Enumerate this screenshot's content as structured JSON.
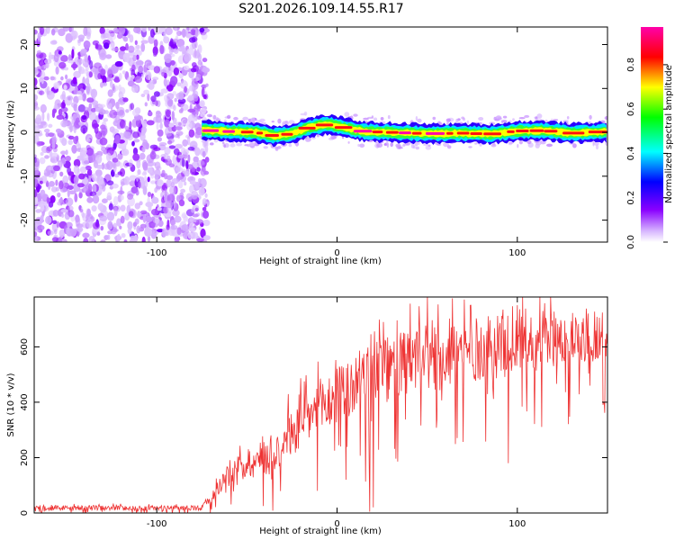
{
  "title": "S201.2026.109.14.55.R17",
  "chart_data": [
    {
      "type": "heatmap",
      "xlabel": "Height of straight line (km)",
      "ylabel": "Frequency (Hz)",
      "xlim": [
        -168,
        150
      ],
      "ylim": [
        -25,
        24
      ],
      "xticks": [
        -100,
        0,
        100
      ],
      "yticks": [
        -20,
        -10,
        0,
        10,
        20
      ],
      "grid": false,
      "colorbar": {
        "label": "Normalized spectral amplitude",
        "range": [
          0,
          0.97
        ],
        "ticks": [
          "0.0",
          "0.2",
          "0.4",
          "0.6",
          "0.8"
        ],
        "colormap": "rainbow (white-violet-blue-cyan-green-yellow-red-magenta)"
      },
      "noise_region_x": [
        -168,
        -75
      ],
      "signal_ridge": {
        "x_start": -75,
        "points": [
          {
            "x": -75,
            "y": 0.5
          },
          {
            "x": -60,
            "y": 0.2
          },
          {
            "x": -45,
            "y": 0.0
          },
          {
            "x": -35,
            "y": -0.8
          },
          {
            "x": -25,
            "y": -0.3
          },
          {
            "x": -15,
            "y": 1.2
          },
          {
            "x": -5,
            "y": 1.8
          },
          {
            "x": 5,
            "y": 1.0
          },
          {
            "x": 15,
            "y": 0.2
          },
          {
            "x": 30,
            "y": 0.0
          },
          {
            "x": 50,
            "y": -0.3
          },
          {
            "x": 70,
            "y": -0.2
          },
          {
            "x": 85,
            "y": -0.4
          },
          {
            "x": 100,
            "y": 0.3
          },
          {
            "x": 115,
            "y": 0.4
          },
          {
            "x": 130,
            "y": -0.2
          },
          {
            "x": 150,
            "y": 0.2
          }
        ]
      }
    },
    {
      "type": "line",
      "xlabel": "Height of straight line (km)",
      "ylabel": "SNR (10 * v/v)",
      "xlim": [
        -168,
        150
      ],
      "ylim": [
        0,
        780
      ],
      "xticks": [
        -100,
        0,
        100
      ],
      "yticks": [
        0,
        200,
        400,
        600
      ],
      "grid": false,
      "color": "#ee3333",
      "envelope": [
        {
          "x": -168,
          "mean": 18,
          "spread": 14
        },
        {
          "x": -75,
          "mean": 18,
          "spread": 14
        },
        {
          "x": -68,
          "mean": 70,
          "spread": 40
        },
        {
          "x": -60,
          "mean": 150,
          "spread": 60
        },
        {
          "x": -50,
          "mean": 175,
          "spread": 80
        },
        {
          "x": -40,
          "mean": 200,
          "spread": 110
        },
        {
          "x": -30,
          "mean": 250,
          "spread": 130
        },
        {
          "x": -20,
          "mean": 320,
          "spread": 150
        },
        {
          "x": -10,
          "mean": 380,
          "spread": 160
        },
        {
          "x": 0,
          "mean": 420,
          "spread": 170
        },
        {
          "x": 10,
          "mean": 460,
          "spread": 180
        },
        {
          "x": 20,
          "mean": 500,
          "spread": 190
        },
        {
          "x": 40,
          "mean": 540,
          "spread": 190
        },
        {
          "x": 60,
          "mean": 570,
          "spread": 190
        },
        {
          "x": 80,
          "mean": 590,
          "spread": 180
        },
        {
          "x": 100,
          "mean": 610,
          "spread": 170
        },
        {
          "x": 120,
          "mean": 630,
          "spread": 160
        },
        {
          "x": 150,
          "mean": 640,
          "spread": 150
        }
      ],
      "notable_dips": [
        {
          "x": 18,
          "y": 5
        },
        {
          "x": 20,
          "y": 20
        },
        {
          "x": 95,
          "y": 180
        },
        {
          "x": 148,
          "y": 400
        }
      ]
    }
  ]
}
